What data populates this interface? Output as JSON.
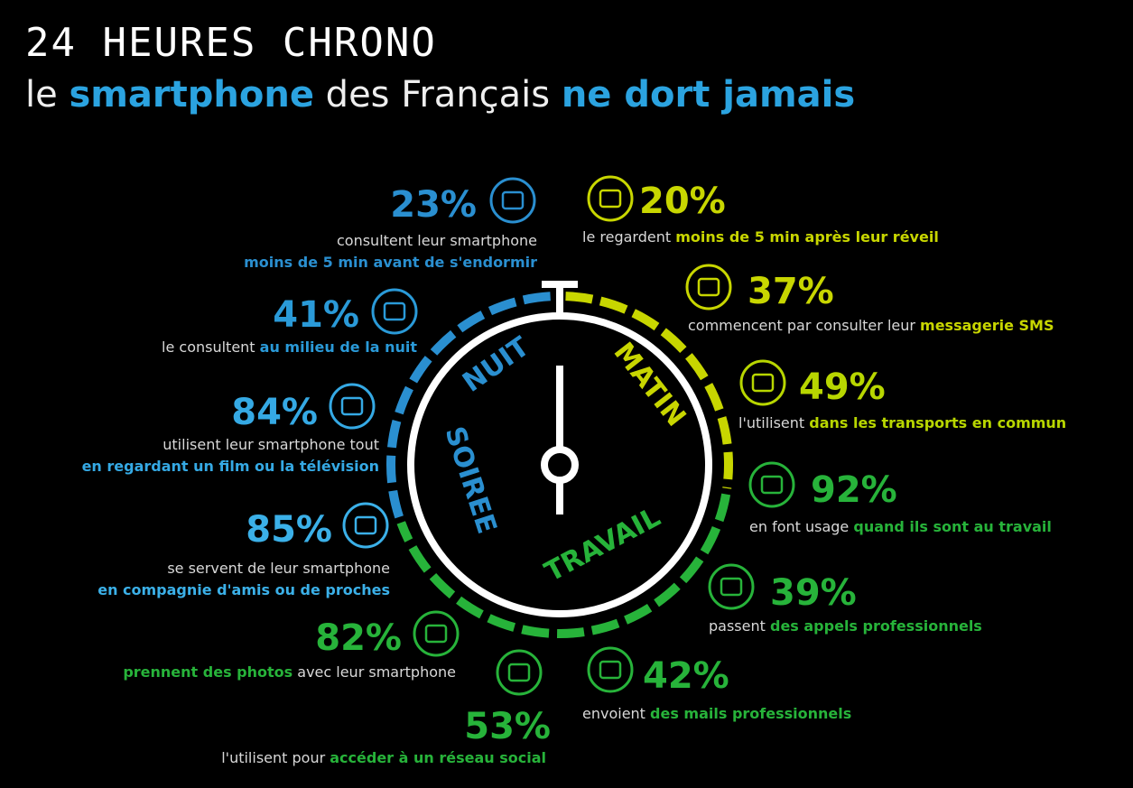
{
  "header": {
    "title": "24 HEURES CHRONO",
    "subtitle": [
      {
        "text": "le "
      },
      {
        "text": "smartphone",
        "color": "#2ba3e0"
      },
      {
        "text": " des Français "
      },
      {
        "text": "ne dort jamais",
        "color": "#2ba3e0"
      }
    ]
  },
  "clock": {
    "labels": [
      {
        "text": "NUIT",
        "color": "#2a8fd0"
      },
      {
        "text": "MATIN",
        "color": "#c8d600"
      },
      {
        "text": "SOIREE",
        "color": "#2a8fd0"
      },
      {
        "text": "TRAVAIL",
        "color": "#27b33a"
      }
    ]
  },
  "items": [
    {
      "percent": "23%",
      "color": "#2a8fd0",
      "lines": [
        [
          {
            "text": "consultent leur smartphone"
          }
        ],
        [
          {
            "text": "moins de 5 min avant de s'endormir",
            "color": "#2a8fd0"
          }
        ]
      ]
    },
    {
      "percent": "41%",
      "color": "#2a9ad8",
      "lines": [
        [
          {
            "text": "le consultent "
          },
          {
            "text": "au milieu de la nuit",
            "color": "#2a9ad8"
          }
        ]
      ]
    },
    {
      "percent": "84%",
      "color": "#35a9e4",
      "lines": [
        [
          {
            "text": "utilisent leur smartphone tout"
          }
        ],
        [
          {
            "text": "en regardant un film ou la télévision",
            "color": "#35a9e4"
          }
        ]
      ]
    },
    {
      "percent": "85%",
      "color": "#3bb0e8",
      "lines": [
        [
          {
            "text": "se servent de leur smartphone"
          }
        ],
        [
          {
            "text": "en compagnie d'amis ou de proches",
            "color": "#3bb0e8"
          }
        ]
      ]
    },
    {
      "percent": "82%",
      "color": "#27b33a",
      "lines": [
        [
          {
            "text": "prennent des photos",
            "color": "#27b33a"
          },
          {
            "text": " avec leur smartphone"
          }
        ]
      ]
    },
    {
      "percent": "53%",
      "color": "#27b33a",
      "lines": [
        [
          {
            "text": "l'utilisent pour "
          },
          {
            "text": "accéder à un réseau social",
            "color": "#27b33a"
          }
        ]
      ]
    },
    {
      "percent": "20%",
      "color": "#c8d600",
      "lines": [
        [
          {
            "text": "le regardent "
          },
          {
            "text": "moins de 5 min après leur réveil",
            "color": "#c8d600"
          }
        ]
      ]
    },
    {
      "percent": "37%",
      "color": "#c8d600",
      "lines": [
        [
          {
            "text": "commencent par consulter leur "
          },
          {
            "text": "messagerie SMS",
            "color": "#c8d600"
          }
        ]
      ]
    },
    {
      "percent": "49%",
      "color": "#b8d600",
      "lines": [
        [
          {
            "text": "l'utilisent  "
          },
          {
            "text": "dans les transports en commun",
            "color": "#b8d600"
          }
        ]
      ]
    },
    {
      "percent": "92%",
      "color": "#27b33a",
      "lines": [
        [
          {
            "text": "en font usage "
          },
          {
            "text": "quand ils sont au travail",
            "color": "#27b33a"
          }
        ]
      ]
    },
    {
      "percent": "39%",
      "color": "#27b33a",
      "lines": [
        [
          {
            "text": "passent "
          },
          {
            "text": "des appels professionnels",
            "color": "#27b33a"
          }
        ]
      ]
    },
    {
      "percent": "42%",
      "color": "#27b33a",
      "lines": [
        [
          {
            "text": "envoient "
          },
          {
            "text": "des mails professionnels",
            "color": "#27b33a"
          }
        ]
      ]
    }
  ]
}
